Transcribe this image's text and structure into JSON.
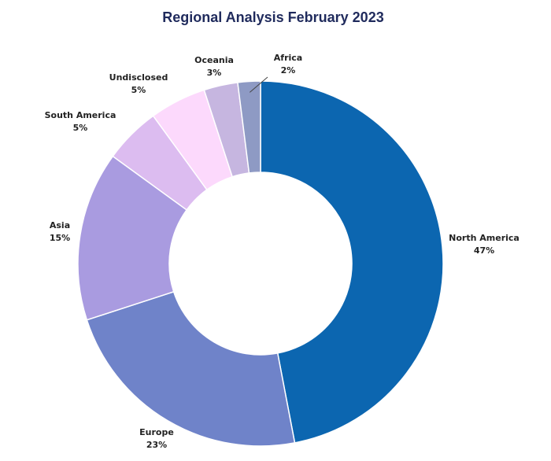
{
  "chart_data": {
    "type": "pie",
    "variant": "donut",
    "title": "Regional Analysis February 2023",
    "title_color": "#1f2a5c",
    "slices": [
      {
        "label": "North America",
        "value": 47,
        "value_label": "47%",
        "color": "#0c66b0"
      },
      {
        "label": "Europe",
        "value": 23,
        "value_label": "23%",
        "color": "#6f83c9"
      },
      {
        "label": "Asia",
        "value": 15,
        "value_label": "15%",
        "color": "#a99be0"
      },
      {
        "label": "South America",
        "value": 5,
        "value_label": "5%",
        "color": "#dcbcf0"
      },
      {
        "label": "Undisclosed",
        "value": 5,
        "value_label": "5%",
        "color": "#fcd9fc"
      },
      {
        "label": "Oceania",
        "value": 3,
        "value_label": "3%",
        "color": "#c6b6e0"
      },
      {
        "label": "Africa",
        "value": 2,
        "value_label": "2%",
        "color": "#8e9ac4"
      }
    ]
  }
}
